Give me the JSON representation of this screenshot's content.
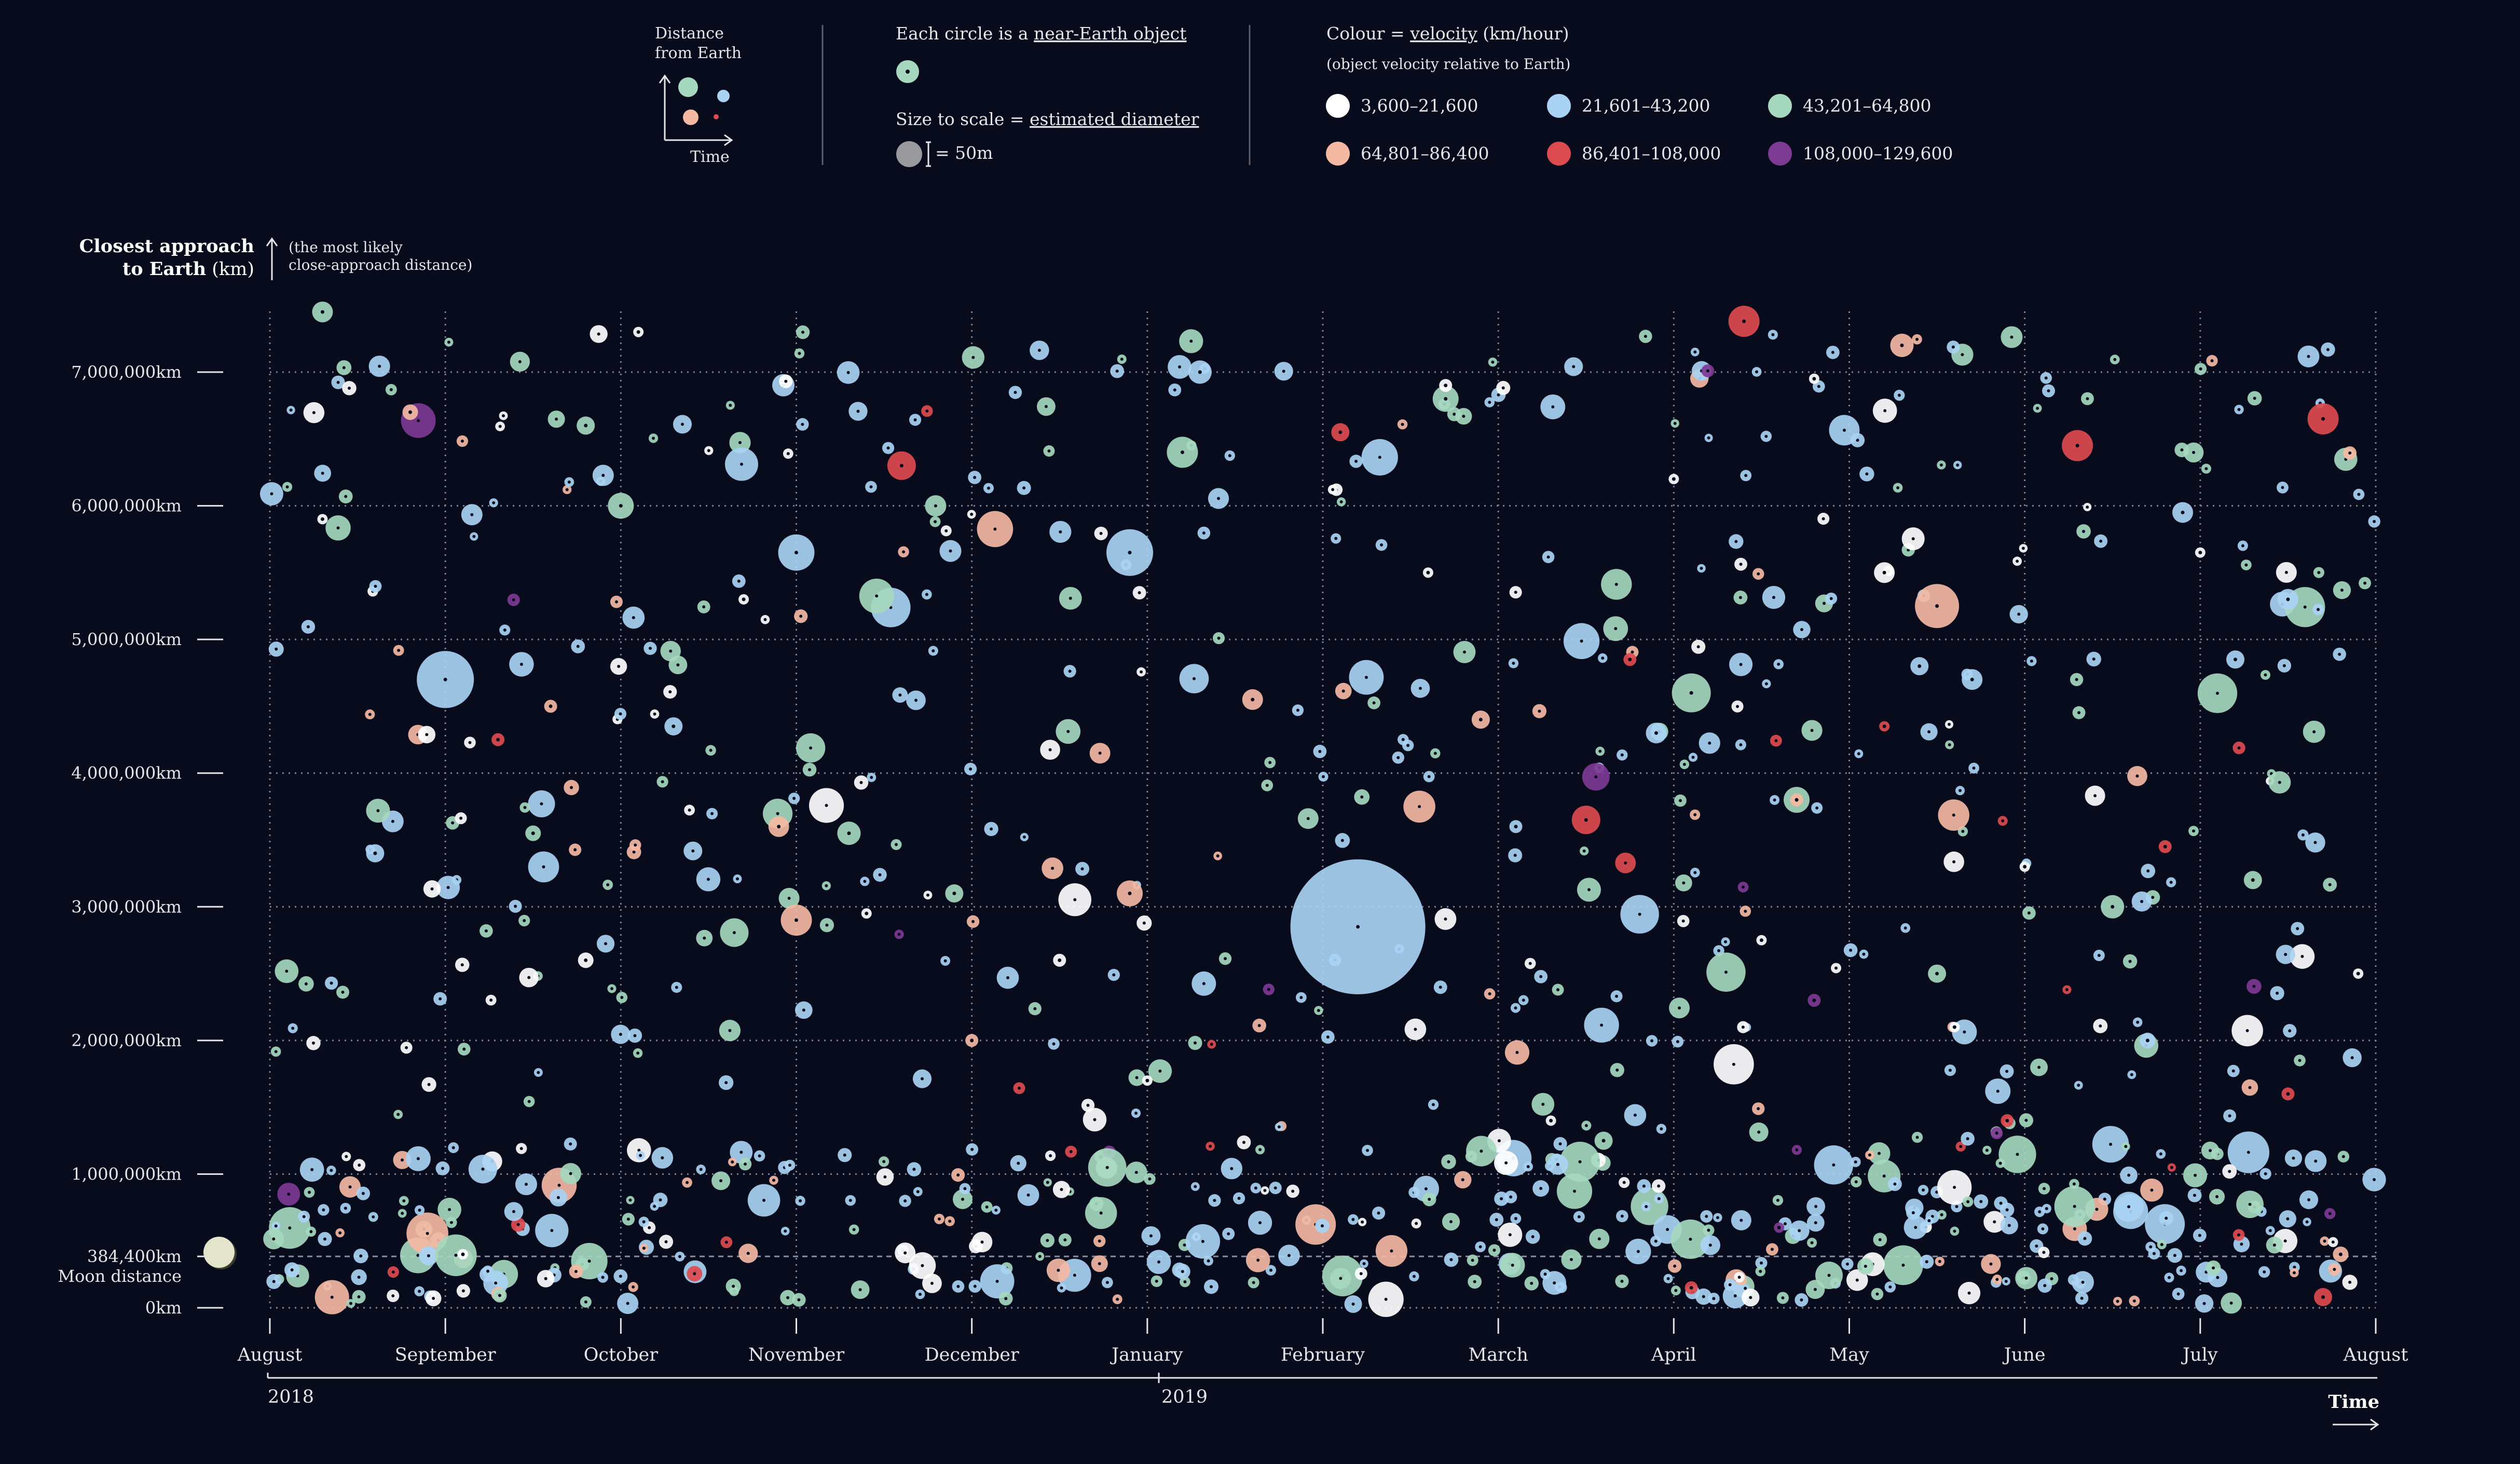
{
  "legend": {
    "distance_axis_title": "Distance",
    "distance_axis_title2": "from Earth",
    "time_axis_title": "Time",
    "circle_text_prefix": "Each circle is a ",
    "circle_text_link": "near-Earth object",
    "size_text_prefix": "Size to scale = ",
    "size_text_link": "estimated diameter",
    "size_scale_label": "= 50m",
    "colour_text_prefix": "Colour = ",
    "colour_text_link": "velocity",
    "colour_text_units": " (km/hour)",
    "colour_subtext": "(object velocity relative to Earth)",
    "velocity_bins": [
      {
        "label": "3,600–21,600",
        "color": "#ffffff"
      },
      {
        "label": "21,601–43,200",
        "color": "#a9d2f3"
      },
      {
        "label": "43,201–64,800",
        "color": "#a5d8be"
      },
      {
        "label": "64,801–86,400",
        "color": "#f4b8a3"
      },
      {
        "label": "86,401–108,000",
        "color": "#dc4b4f"
      },
      {
        "label": "108,000–129,600",
        "color": "#7d3a93"
      }
    ]
  },
  "yaxis": {
    "title_bold": "Closest approach",
    "title_bold2": "to Earth",
    "title_units": " (km)",
    "note": "(the most likely",
    "note2": "close-approach distance)",
    "ticks": [
      {
        "value": 0,
        "label": "0km"
      },
      {
        "value": 384400,
        "label": "384,400km"
      },
      {
        "value": 1000000,
        "label": "1,000,000km"
      },
      {
        "value": 2000000,
        "label": "2,000,000km"
      },
      {
        "value": 3000000,
        "label": "3,000,000km"
      },
      {
        "value": 4000000,
        "label": "4,000,000km"
      },
      {
        "value": 5000000,
        "label": "5,000,000km"
      },
      {
        "value": 6000000,
        "label": "6,000,000km"
      },
      {
        "value": 7000000,
        "label": "7,000,000km"
      }
    ],
    "moon_label": "Moon distance"
  },
  "xaxis": {
    "months": [
      "August",
      "September",
      "October",
      "November",
      "December",
      "January",
      "February",
      "March",
      "April",
      "May",
      "June",
      "July",
      "August"
    ],
    "years": [
      "2018",
      "2019"
    ],
    "time_label": "Time"
  },
  "chart_data": {
    "type": "scatter",
    "x_unit": "months since August 2018",
    "y_unit": "km",
    "xlim": [
      0,
      12
    ],
    "ylim": [
      0,
      7000000
    ],
    "size_unit": "estimated diameter (m)",
    "series_by_velocity": [
      "3,600–21,600",
      "21,601–43,200",
      "43,201–64,800",
      "64,801–86,400",
      "86,401–108,000",
      "108,000–129,600"
    ],
    "points": [
      [
        3.6,
        6300000,
        55,
        4
      ],
      [
        6.1,
        6550000,
        35,
        4
      ],
      [
        8.4,
        7380000,
        60,
        4
      ],
      [
        10.3,
        6450000,
        60,
        4
      ],
      [
        11.7,
        6650000,
        60,
        4
      ],
      [
        7.5,
        3650000,
        55,
        4
      ],
      [
        1.3,
        4250000,
        25,
        4
      ],
      [
        9.9,
        1400000,
        25,
        4
      ],
      [
        11.5,
        1600000,
        25,
        4
      ],
      [
        7.75,
        4850000,
        25,
        4
      ],
      [
        10.8,
        3450000,
        25,
        4
      ],
      [
        8.1,
        150000,
        25,
        4
      ],
      [
        11.7,
        80000,
        35,
        4
      ],
      [
        9.2,
        4350000,
        20,
        4
      ],
      [
        1.0,
        4700000,
        110,
        1
      ],
      [
        4.9,
        5650000,
        90,
        1
      ],
      [
        6.2,
        2850000,
        260,
        1
      ],
      [
        5.3,
        7000000,
        45,
        1
      ],
      [
        10.9,
        5950000,
        40,
        1
      ],
      [
        7.9,
        4300000,
        40,
        1
      ],
      [
        11.5,
        5300000,
        40,
        1
      ],
      [
        2.3,
        4350000,
        35,
        1
      ],
      [
        9.4,
        4800000,
        35,
        1
      ],
      [
        0.6,
        3400000,
        35,
        1
      ],
      [
        11.2,
        4850000,
        35,
        1
      ],
      [
        3.0,
        5650000,
        70,
        1
      ],
      [
        9.7,
        4700000,
        40,
        1
      ],
      [
        7.1,
        3600000,
        25,
        1
      ],
      [
        10.7,
        2000000,
        30,
        1
      ],
      [
        8.1,
        4600000,
        75,
        2
      ],
      [
        6.7,
        6800000,
        50,
        2
      ],
      [
        5.2,
        6400000,
        60,
        2
      ],
      [
        0.3,
        7450000,
        40,
        2
      ],
      [
        3.3,
        3550000,
        45,
        2
      ],
      [
        2.0,
        6000000,
        50,
        2
      ],
      [
        7.6,
        1250000,
        35,
        2
      ],
      [
        1.5,
        3550000,
        30,
        2
      ],
      [
        11.3,
        3200000,
        35,
        2
      ],
      [
        10.5,
        3000000,
        45,
        2
      ],
      [
        8.7,
        3800000,
        50,
        2
      ],
      [
        9.5,
        2500000,
        35,
        2
      ],
      [
        3.9,
        3100000,
        35,
        2
      ],
      [
        1.8,
        6600000,
        35,
        2
      ],
      [
        9.5,
        5250000,
        85,
        3
      ],
      [
        3.0,
        2900000,
        60,
        3
      ],
      [
        4.9,
        3100000,
        50,
        3
      ],
      [
        0.8,
        6700000,
        30,
        3
      ],
      [
        5.6,
        4550000,
        40,
        3
      ],
      [
        9.3,
        7200000,
        45,
        3
      ],
      [
        2.9,
        3600000,
        40,
        3
      ],
      [
        1.6,
        4500000,
        25,
        3
      ],
      [
        8.7,
        3800000,
        25,
        3
      ],
      [
        11.8,
        400000,
        30,
        3
      ],
      [
        4.0,
        2000000,
        25,
        3
      ],
      [
        6.9,
        4400000,
        35,
        3
      ],
      [
        1.8,
        2600000,
        30,
        0
      ],
      [
        4.5,
        2600000,
        25,
        0
      ],
      [
        9.2,
        5500000,
        40,
        0
      ],
      [
        6.7,
        6900000,
        25,
        0
      ],
      [
        10.0,
        3300000,
        20,
        0
      ],
      [
        11.0,
        5650000,
        20,
        0
      ],
      [
        2.1,
        7300000,
        20,
        0
      ],
      [
        5.0,
        1700000,
        20,
        0
      ],
      [
        7.3,
        1400000,
        20,
        0
      ],
      [
        0.3,
        5900000,
        20,
        0
      ],
      [
        8.5,
        2750000,
        20,
        0
      ],
      [
        3.4,
        2950000,
        20,
        0
      ],
      [
        11.9,
        2500000,
        20,
        0
      ],
      [
        8.8,
        6950000,
        20,
        0
      ],
      [
        9.6,
        2100000,
        20,
        0
      ],
      [
        1.1,
        400000,
        20,
        0
      ],
      [
        6.6,
        5500000,
        20,
        0
      ],
      [
        2.7,
        5300000,
        20,
        0
      ],
      [
        8.0,
        6200000,
        20,
        0
      ],
      [
        8.8,
        2300000,
        25,
        5
      ],
      [
        8.6,
        600000,
        20,
        5
      ]
    ]
  }
}
